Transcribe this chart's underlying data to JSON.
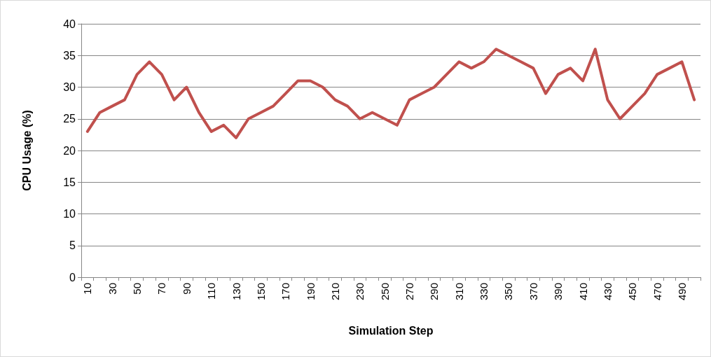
{
  "chart_data": {
    "type": "line",
    "xlabel": "Simulation Step",
    "ylabel": "CPU Usage (%)",
    "categories": [
      "10",
      null,
      "30",
      null,
      "50",
      null,
      "70",
      null,
      "90",
      null,
      "110",
      null,
      "130",
      null,
      "150",
      null,
      "170",
      null,
      "190",
      null,
      "210",
      null,
      "230",
      null,
      "250",
      null,
      "270",
      null,
      "290",
      null,
      "310",
      null,
      "330",
      null,
      "350",
      null,
      "370",
      null,
      "390",
      null,
      "410",
      null,
      "430",
      null,
      "450",
      null,
      "470",
      null,
      "490",
      null
    ],
    "series": [
      {
        "color": "#c0504d",
        "values": [
          23,
          26,
          27,
          28,
          32,
          34,
          32,
          28,
          30,
          26,
          23,
          24,
          22,
          25,
          26,
          27,
          29,
          31,
          31,
          30,
          28,
          27,
          25,
          26,
          25,
          24,
          28,
          29,
          30,
          32,
          34,
          33,
          34,
          36,
          35,
          34,
          33,
          29,
          32,
          33,
          31,
          36,
          28,
          25,
          27,
          29,
          32,
          33,
          34,
          28
        ]
      }
    ],
    "ylim": [
      0,
      40
    ],
    "yticks": [
      0,
      5,
      10,
      15,
      20,
      25,
      30,
      35,
      40
    ],
    "grid": "y",
    "marker": "none",
    "line_style": "solid"
  }
}
